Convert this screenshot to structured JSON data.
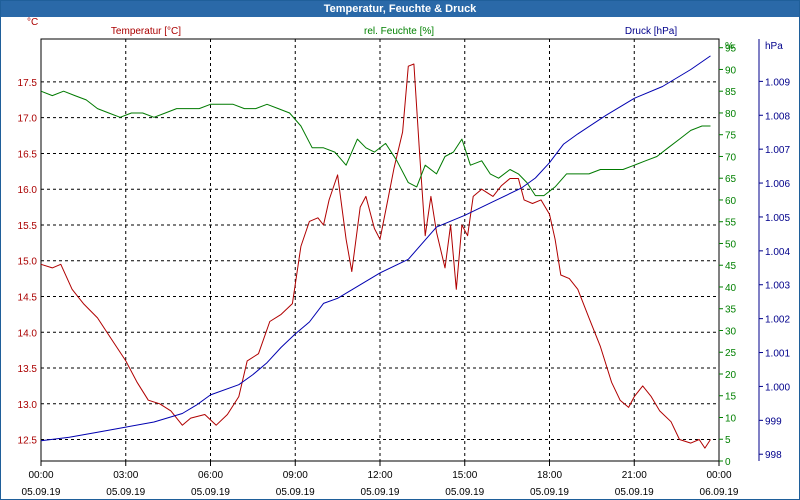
{
  "window": {
    "title": "Temperatur, Feuchte & Druck"
  },
  "chart_data": {
    "type": "line",
    "grid": true,
    "colors": {
      "temperature": "#b00000",
      "humidity": "#007a00",
      "pressure": "#0000b0"
    },
    "x_ticks": [
      {
        "time": "00:00",
        "date": "05.09.19"
      },
      {
        "time": "03:00",
        "date": "05.09.19"
      },
      {
        "time": "06:00",
        "date": "05.09.19"
      },
      {
        "time": "09:00",
        "date": "05.09.19"
      },
      {
        "time": "12:00",
        "date": "05.09.19"
      },
      {
        "time": "15:00",
        "date": "05.09.19"
      },
      {
        "time": "18:00",
        "date": "05.09.19"
      },
      {
        "time": "21:00",
        "date": "05.09.19"
      },
      {
        "time": "00:00",
        "date": "06.09.19"
      }
    ],
    "axes": {
      "temperature": {
        "label": "Temperatur [°C]",
        "unit": "°C",
        "range": [
          12.2,
          18.1
        ],
        "ticks": [
          "12.5",
          "13.0",
          "13.5",
          "14.0",
          "14.5",
          "15.0",
          "15.5",
          "16.0",
          "16.5",
          "17.0",
          "17.5"
        ]
      },
      "humidity": {
        "label": "rel. Feuchte [%]",
        "unit": "%",
        "range": [
          0,
          97
        ],
        "ticks": [
          "0",
          "5",
          "10",
          "15",
          "20",
          "25",
          "30",
          "35",
          "40",
          "45",
          "50",
          "55",
          "60",
          "65",
          "70",
          "75",
          "80",
          "85",
          "90",
          "95"
        ]
      },
      "pressure": {
        "label": "Druck [hPa]",
        "unit": "hPa",
        "range": [
          997.8,
          1010.25
        ],
        "ticks": [
          "998",
          "999",
          "1.000",
          "1.001",
          "1.002",
          "1.003",
          "1.004",
          "1.005",
          "1.006",
          "1.007",
          "1.008",
          "1.009"
        ]
      }
    },
    "series": [
      {
        "name": "Temperatur [°C]",
        "axis": "temperature",
        "points": [
          [
            0.0,
            14.95
          ],
          [
            0.4,
            14.9
          ],
          [
            0.7,
            14.95
          ],
          [
            1.1,
            14.6
          ],
          [
            1.5,
            14.4
          ],
          [
            2.0,
            14.2
          ],
          [
            2.5,
            13.9
          ],
          [
            3.0,
            13.6
          ],
          [
            3.4,
            13.3
          ],
          [
            3.8,
            13.05
          ],
          [
            4.2,
            13.0
          ],
          [
            4.6,
            12.9
          ],
          [
            5.0,
            12.7
          ],
          [
            5.3,
            12.8
          ],
          [
            5.8,
            12.85
          ],
          [
            6.2,
            12.7
          ],
          [
            6.6,
            12.85
          ],
          [
            7.0,
            13.1
          ],
          [
            7.3,
            13.6
          ],
          [
            7.7,
            13.7
          ],
          [
            8.1,
            14.15
          ],
          [
            8.5,
            14.25
          ],
          [
            8.9,
            14.4
          ],
          [
            9.2,
            15.2
          ],
          [
            9.5,
            15.55
          ],
          [
            9.8,
            15.6
          ],
          [
            10.0,
            15.5
          ],
          [
            10.2,
            15.85
          ],
          [
            10.5,
            16.2
          ],
          [
            10.8,
            15.3
          ],
          [
            11.0,
            14.85
          ],
          [
            11.3,
            15.75
          ],
          [
            11.5,
            15.9
          ],
          [
            11.8,
            15.45
          ],
          [
            12.0,
            15.3
          ],
          [
            12.3,
            15.9
          ],
          [
            12.5,
            16.3
          ],
          [
            12.8,
            16.8
          ],
          [
            13.0,
            17.72
          ],
          [
            13.2,
            17.75
          ],
          [
            13.4,
            16.5
          ],
          [
            13.6,
            15.35
          ],
          [
            13.8,
            15.9
          ],
          [
            14.0,
            15.4
          ],
          [
            14.3,
            14.9
          ],
          [
            14.5,
            15.5
          ],
          [
            14.7,
            14.6
          ],
          [
            14.9,
            15.5
          ],
          [
            15.1,
            15.35
          ],
          [
            15.3,
            15.9
          ],
          [
            15.6,
            16.0
          ],
          [
            16.0,
            15.9
          ],
          [
            16.3,
            16.05
          ],
          [
            16.6,
            16.15
          ],
          [
            16.9,
            16.15
          ],
          [
            17.1,
            15.85
          ],
          [
            17.4,
            15.8
          ],
          [
            17.7,
            15.85
          ],
          [
            18.0,
            15.65
          ],
          [
            18.2,
            15.3
          ],
          [
            18.4,
            14.8
          ],
          [
            18.7,
            14.75
          ],
          [
            19.0,
            14.6
          ],
          [
            19.4,
            14.2
          ],
          [
            19.8,
            13.8
          ],
          [
            20.2,
            13.3
          ],
          [
            20.5,
            13.05
          ],
          [
            20.8,
            12.95
          ],
          [
            21.0,
            13.1
          ],
          [
            21.3,
            13.25
          ],
          [
            21.6,
            13.1
          ],
          [
            21.9,
            12.9
          ],
          [
            22.3,
            12.75
          ],
          [
            22.6,
            12.5
          ],
          [
            23.0,
            12.45
          ],
          [
            23.3,
            12.5
          ],
          [
            23.5,
            12.38
          ],
          [
            23.7,
            12.5
          ]
        ]
      },
      {
        "name": "rel. Feuchte [%]",
        "axis": "humidity",
        "points": [
          [
            0.0,
            85
          ],
          [
            0.4,
            84
          ],
          [
            0.8,
            85
          ],
          [
            1.2,
            84
          ],
          [
            1.6,
            83
          ],
          [
            2.0,
            81
          ],
          [
            2.4,
            80
          ],
          [
            2.8,
            79
          ],
          [
            3.2,
            80
          ],
          [
            3.6,
            80
          ],
          [
            4.0,
            79
          ],
          [
            4.4,
            80
          ],
          [
            4.8,
            81
          ],
          [
            5.2,
            81
          ],
          [
            5.6,
            81
          ],
          [
            6.0,
            82
          ],
          [
            6.4,
            82
          ],
          [
            6.8,
            82
          ],
          [
            7.2,
            81
          ],
          [
            7.6,
            81
          ],
          [
            8.0,
            82
          ],
          [
            8.4,
            81
          ],
          [
            8.8,
            80
          ],
          [
            9.2,
            77
          ],
          [
            9.6,
            72
          ],
          [
            10.0,
            72
          ],
          [
            10.4,
            71
          ],
          [
            10.8,
            68
          ],
          [
            11.2,
            74
          ],
          [
            11.5,
            72
          ],
          [
            11.8,
            71
          ],
          [
            12.2,
            73
          ],
          [
            12.6,
            69
          ],
          [
            13.0,
            64
          ],
          [
            13.3,
            63
          ],
          [
            13.6,
            68
          ],
          [
            14.0,
            66
          ],
          [
            14.3,
            70
          ],
          [
            14.6,
            71
          ],
          [
            14.9,
            74
          ],
          [
            15.2,
            68
          ],
          [
            15.6,
            69
          ],
          [
            15.9,
            66
          ],
          [
            16.2,
            65
          ],
          [
            16.6,
            67
          ],
          [
            16.9,
            66
          ],
          [
            17.2,
            64
          ],
          [
            17.5,
            61
          ],
          [
            17.8,
            61
          ],
          [
            18.2,
            63
          ],
          [
            18.6,
            66
          ],
          [
            19.0,
            66
          ],
          [
            19.4,
            66
          ],
          [
            19.8,
            67
          ],
          [
            20.2,
            67
          ],
          [
            20.6,
            67
          ],
          [
            21.0,
            68
          ],
          [
            21.4,
            69
          ],
          [
            21.8,
            70
          ],
          [
            22.2,
            72
          ],
          [
            22.6,
            74
          ],
          [
            23.0,
            76
          ],
          [
            23.4,
            77
          ],
          [
            23.7,
            77
          ]
        ]
      },
      {
        "name": "Druck [hPa]",
        "axis": "pressure",
        "points": [
          [
            0.0,
            998.4
          ],
          [
            1.0,
            998.5
          ],
          [
            2.0,
            998.65
          ],
          [
            3.0,
            998.8
          ],
          [
            4.0,
            998.95
          ],
          [
            5.0,
            999.2
          ],
          [
            5.5,
            999.45
          ],
          [
            6.0,
            999.75
          ],
          [
            7.0,
            1000.05
          ],
          [
            7.5,
            1000.35
          ],
          [
            8.0,
            1000.7
          ],
          [
            8.5,
            1001.15
          ],
          [
            9.0,
            1001.55
          ],
          [
            9.5,
            1001.9
          ],
          [
            10.0,
            1002.45
          ],
          [
            10.5,
            1002.6
          ],
          [
            11.0,
            1002.85
          ],
          [
            12.0,
            1003.35
          ],
          [
            13.0,
            1003.75
          ],
          [
            14.0,
            1004.7
          ],
          [
            15.0,
            1005.05
          ],
          [
            16.0,
            1005.45
          ],
          [
            17.0,
            1005.85
          ],
          [
            17.5,
            1006.15
          ],
          [
            18.0,
            1006.6
          ],
          [
            18.5,
            1007.15
          ],
          [
            19.0,
            1007.45
          ],
          [
            20.0,
            1008.0
          ],
          [
            21.0,
            1008.5
          ],
          [
            22.0,
            1008.85
          ],
          [
            23.0,
            1009.35
          ],
          [
            23.7,
            1009.75
          ]
        ]
      }
    ]
  }
}
